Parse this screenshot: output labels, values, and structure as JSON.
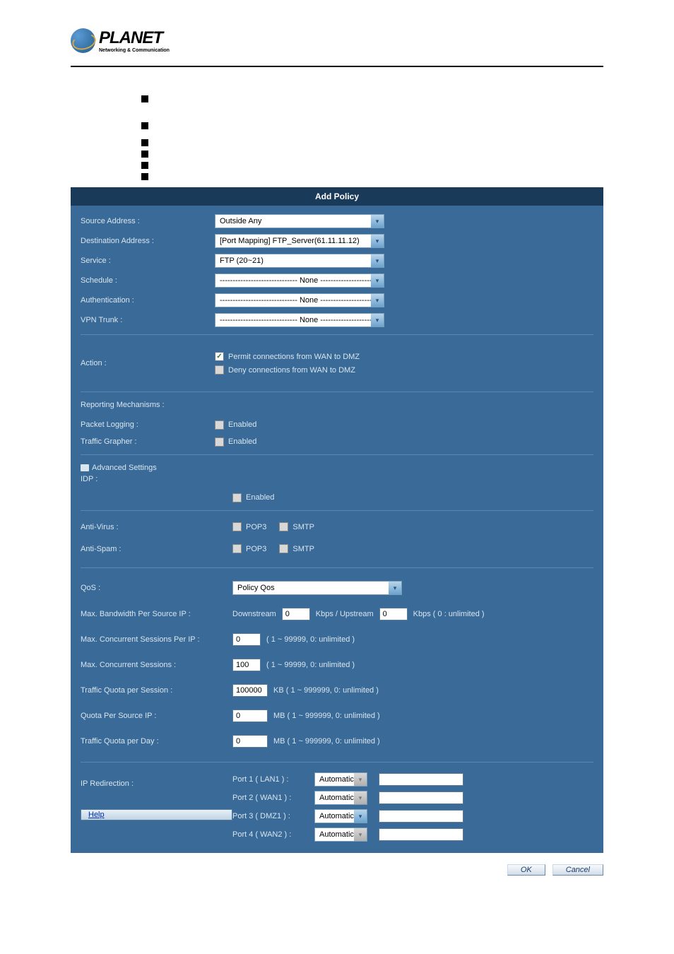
{
  "logo": {
    "main": "PLANET",
    "sub": "Networking & Communication"
  },
  "panel_title": "Add Policy",
  "fields": {
    "source_addr": {
      "label": "Source Address :",
      "value": "Outside Any"
    },
    "dest_addr": {
      "label": "Destination Address :",
      "value": "[Port Mapping] FTP_Server(61.11.11.12)"
    },
    "service": {
      "label": "Service :",
      "value": "FTP (20~21)"
    },
    "schedule": {
      "label": "Schedule :",
      "value": "------------------------------ None ------------------------------"
    },
    "auth": {
      "label": "Authentication :",
      "value": "------------------------------ None ------------------------------"
    },
    "vpn": {
      "label": "VPN Trunk :",
      "value": "------------------------------ None ------------------------------"
    }
  },
  "action": {
    "label": "Action :",
    "permit": "Permit connections from WAN to DMZ",
    "deny": "Deny connections from WAN to DMZ"
  },
  "reporting": {
    "title": "Reporting Mechanisms :",
    "packet": {
      "label": "Packet Logging :",
      "opt": "Enabled"
    },
    "grapher": {
      "label": "Traffic Grapher :",
      "opt": "Enabled"
    }
  },
  "advanced": {
    "title": "Advanced Settings",
    "idp": {
      "label": "IDP :",
      "opt": "Enabled"
    },
    "antivirus": {
      "label": "Anti-Virus :",
      "opt1": "POP3",
      "opt2": "SMTP"
    },
    "antispam": {
      "label": "Anti-Spam :",
      "opt1": "POP3",
      "opt2": "SMTP"
    }
  },
  "qos": {
    "label": "QoS :",
    "value": "Policy Qos",
    "maxbw": {
      "label": "Max. Bandwidth Per Source IP :",
      "down_label": "Downstream",
      "down_val": "0",
      "mid": "Kbps  /  Upstream",
      "up_val": "0",
      "hint": "Kbps ( 0 : unlimited )"
    },
    "maxconcip": {
      "label": "Max. Concurrent Sessions Per IP :",
      "val": "0",
      "hint": "( 1 ~ 99999, 0: unlimited )"
    },
    "maxconc": {
      "label": "Max. Concurrent Sessions :",
      "val": "100",
      "hint": "( 1 ~ 99999, 0: unlimited )"
    },
    "quotasess": {
      "label": "Traffic Quota per Session :",
      "val": "100000",
      "hint": "KB ( 1 ~ 999999, 0: unlimited )"
    },
    "quotaip": {
      "label": "Quota Per Source IP :",
      "val": "0",
      "hint": "MB ( 1 ~ 999999, 0: unlimited )"
    },
    "quotaday": {
      "label": "Traffic Quota per Day :",
      "val": "0",
      "hint": "MB ( 1 ~ 999999, 0: unlimited )"
    }
  },
  "ipred": {
    "label": "IP Redirection :",
    "help": "Help",
    "ports": [
      {
        "label": "Port 1  ( LAN1 ) :",
        "mode": "Automatic",
        "disabled": true
      },
      {
        "label": "Port 2  ( WAN1 ) :",
        "mode": "Automatic",
        "disabled": true
      },
      {
        "label": "Port 3  ( DMZ1 ) :",
        "mode": "Automatic",
        "disabled": false
      },
      {
        "label": "Port 4  ( WAN2 ) :",
        "mode": "Automatic",
        "disabled": true
      }
    ]
  },
  "buttons": {
    "ok": "OK",
    "cancel": "Cancel"
  }
}
